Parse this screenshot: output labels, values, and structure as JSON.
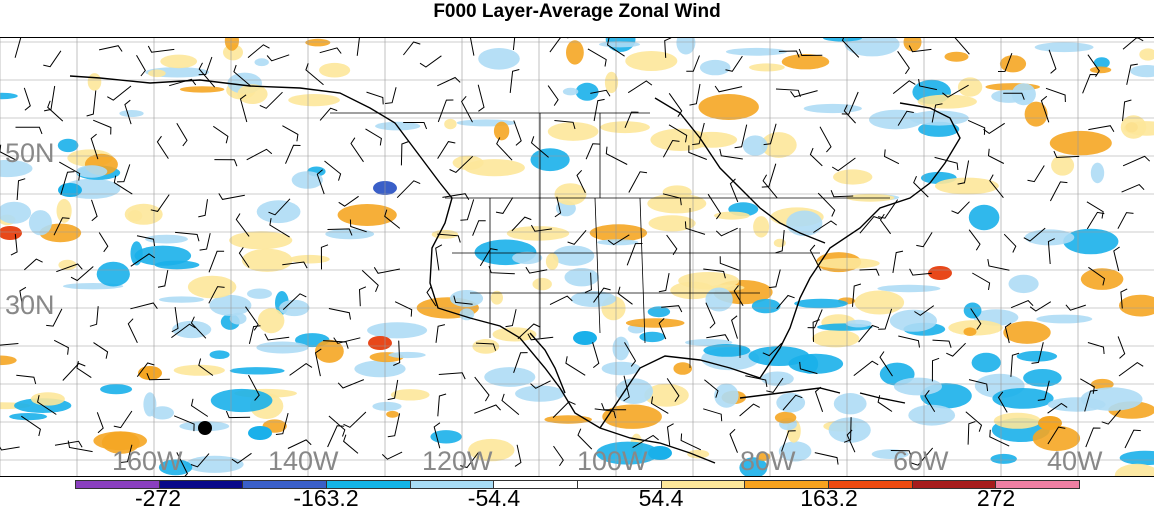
{
  "title": "F000 Layer-Average Zonal Wind",
  "latitude_labels": [
    "50N",
    "30N"
  ],
  "longitude_labels": [
    "160W",
    "140W",
    "120W",
    "100W",
    "80W",
    "60W",
    "40W"
  ],
  "colorbar": {
    "colors": [
      "#8a3fbf",
      "#0a0a8a",
      "#3a5fc8",
      "#14b4e8",
      "#a8dcf5",
      "#ffffff",
      "#ffffff",
      "#fde79a",
      "#f7a21e",
      "#ee4a10",
      "#a61c1c",
      "#ef7fa3"
    ],
    "labels": [
      "-272",
      "-163.2",
      "-54.4",
      "54.4",
      "163.2",
      "272"
    ]
  },
  "field_colors": {
    "orange": "#f5a623",
    "yellow": "#fde79a",
    "light_blue": "#aedcf5",
    "blue": "#1ab0ea",
    "dark_blue": "#3a5fc8",
    "red": "#e8481a"
  }
}
